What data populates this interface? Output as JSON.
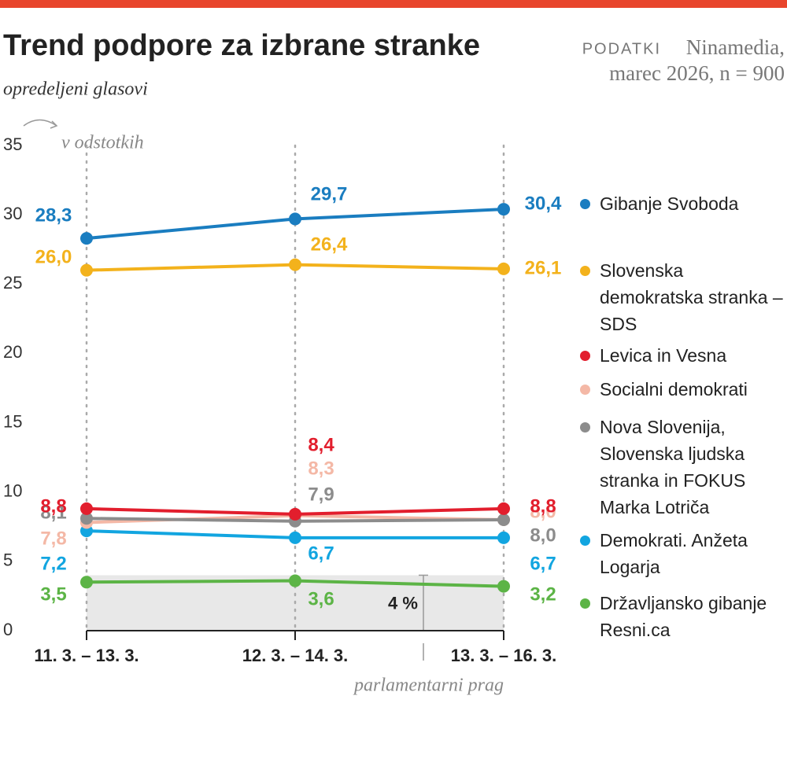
{
  "chart_data": {
    "type": "line",
    "title": "Trend podpore za izbrane stranke",
    "subtitle": "opredeljeni glasovi",
    "source_label": "PODATKI",
    "source": "Ninamedia,",
    "source_detail": "marec 2026, n = 900",
    "unit_label": "v odstotkih",
    "categories": [
      "11. 3. – 13. 3.",
      "12. 3. – 14. 3.",
      "13. 3. – 16. 3."
    ],
    "ylim": [
      0,
      35
    ],
    "yticks": [
      0,
      5,
      10,
      15,
      20,
      25,
      30,
      35
    ],
    "threshold": 4,
    "threshold_label": "4 %",
    "threshold_annotation": "parlamentarni prag",
    "series": [
      {
        "name": "Gibanje Svoboda",
        "color": "#1a7dc0",
        "values": [
          28.3,
          29.7,
          30.4
        ],
        "value_labels": [
          "28,3",
          "29,7",
          "30,4"
        ]
      },
      {
        "name": "Slovenska demokratska stranka – SDS",
        "color": "#f3b21c",
        "values": [
          26.0,
          26.4,
          26.1
        ],
        "value_labels": [
          "26,0",
          "26,4",
          "26,1"
        ]
      },
      {
        "name": "Levica in Vesna",
        "color": "#e21e2d",
        "values": [
          8.8,
          8.4,
          8.8
        ],
        "value_labels": [
          "8,8",
          "8,4",
          "8,8"
        ]
      },
      {
        "name": "Socialni demokrati",
        "color": "#f4b8a6",
        "values": [
          7.8,
          8.3,
          8.0
        ],
        "value_labels": [
          "7,8",
          "8,3",
          "8,0"
        ]
      },
      {
        "name": "Nova Slovenija, Slovenska ljudska stranka in FOKUS Marka Lotriča",
        "color": "#8c8c8c",
        "values": [
          8.1,
          7.9,
          8.0
        ],
        "value_labels": [
          "8,1",
          "7,9",
          "8,0"
        ]
      },
      {
        "name": "Demokrati. Anžeta Logarja",
        "color": "#12a5e0",
        "values": [
          7.2,
          6.7,
          6.7
        ],
        "value_labels": [
          "7,2",
          "6,7",
          "6,7"
        ]
      },
      {
        "name": "Državljansko gibanje Resni.ca",
        "color": "#5cb446",
        "values": [
          3.5,
          3.6,
          3.2
        ],
        "value_labels": [
          "3,5",
          "3,6",
          "3,2"
        ]
      }
    ]
  }
}
